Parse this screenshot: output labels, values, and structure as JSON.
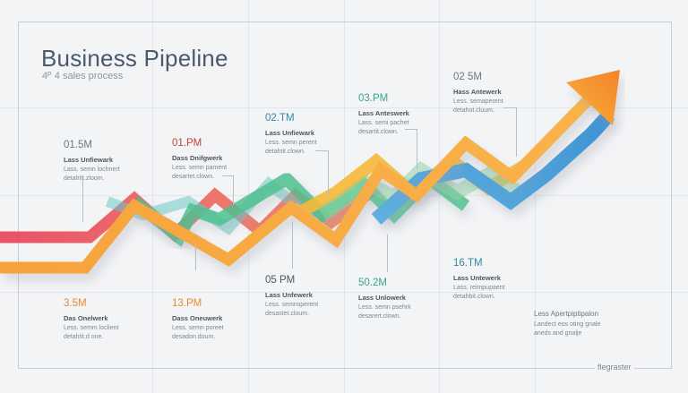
{
  "header": {
    "title": "Business Pipeline",
    "subtitle": "4ᴾ 4 sales process"
  },
  "annotations_top": [
    {
      "value": "01.5M",
      "label": "Lass Unfiewark",
      "desc1": "Lass. semn lochnert",
      "desc2": "detahtit.zloom.",
      "color": "#6e7781"
    },
    {
      "value": "01.PM",
      "label": "Dass Dnifgwerk",
      "desc1": "Less. semn pament",
      "desc2": "desartet.clown.",
      "color": "#c0453a"
    },
    {
      "value": "02.TM",
      "label": "Lass Unfiewark",
      "desc1": "Less. semn perent",
      "desc2": "detahtit.clown.",
      "color": "#2f8aa6"
    },
    {
      "value": "03.PM",
      "label": "Lass Anteswerk",
      "desc1": "Lass. semi pachet",
      "desc2": "desartit.clown.",
      "color": "#3ba58a"
    },
    {
      "value": "02 5M",
      "label": "Hass Antewerk",
      "desc1": "Less. semaperent",
      "desc2": "detahot.cluum.",
      "color": "#6e7781"
    }
  ],
  "annotations_bottom": [
    {
      "value": "3.5M",
      "label": "Das Onelwerk",
      "desc1": "Less. semm loclient",
      "desc2": "detahtit.d one.",
      "color": "#e58a2b"
    },
    {
      "value": "13.PM",
      "label": "Dass Oneuwerk",
      "desc1": "Less. semn poreet",
      "desc2": "desadon.doum.",
      "color": "#e58a2b"
    },
    {
      "value": "05 PM",
      "label": "Lass Unfewerk",
      "desc1": "Less. semnsperent",
      "desc2": "desastet.cloum.",
      "color": "#4c5560"
    },
    {
      "value": "50.2M",
      "label": "Lass Unlowerk",
      "desc1": "Less. semn psehrk",
      "desc2": "desarert.clown.",
      "color": "#3ba58a"
    },
    {
      "value": "16.TM",
      "label": "Lass Untewerk",
      "desc1": "Lass. reimpupaent",
      "desc2": "detahbit.clown.",
      "color": "#2f8aa6"
    }
  ],
  "note": {
    "title": "Less Apertpiptipalon",
    "line1": "Landect eos oting gnale",
    "line2": "aneds and gnalje"
  },
  "footer": {
    "label": "flegraster"
  },
  "colors": {
    "red": "#e8515b",
    "orange": "#f79a3c",
    "teal": "#57c5c3",
    "green": "#4cbf91",
    "yellow": "#f6b73c",
    "blue": "#4ea6dc",
    "arrow": "#f5902e"
  }
}
